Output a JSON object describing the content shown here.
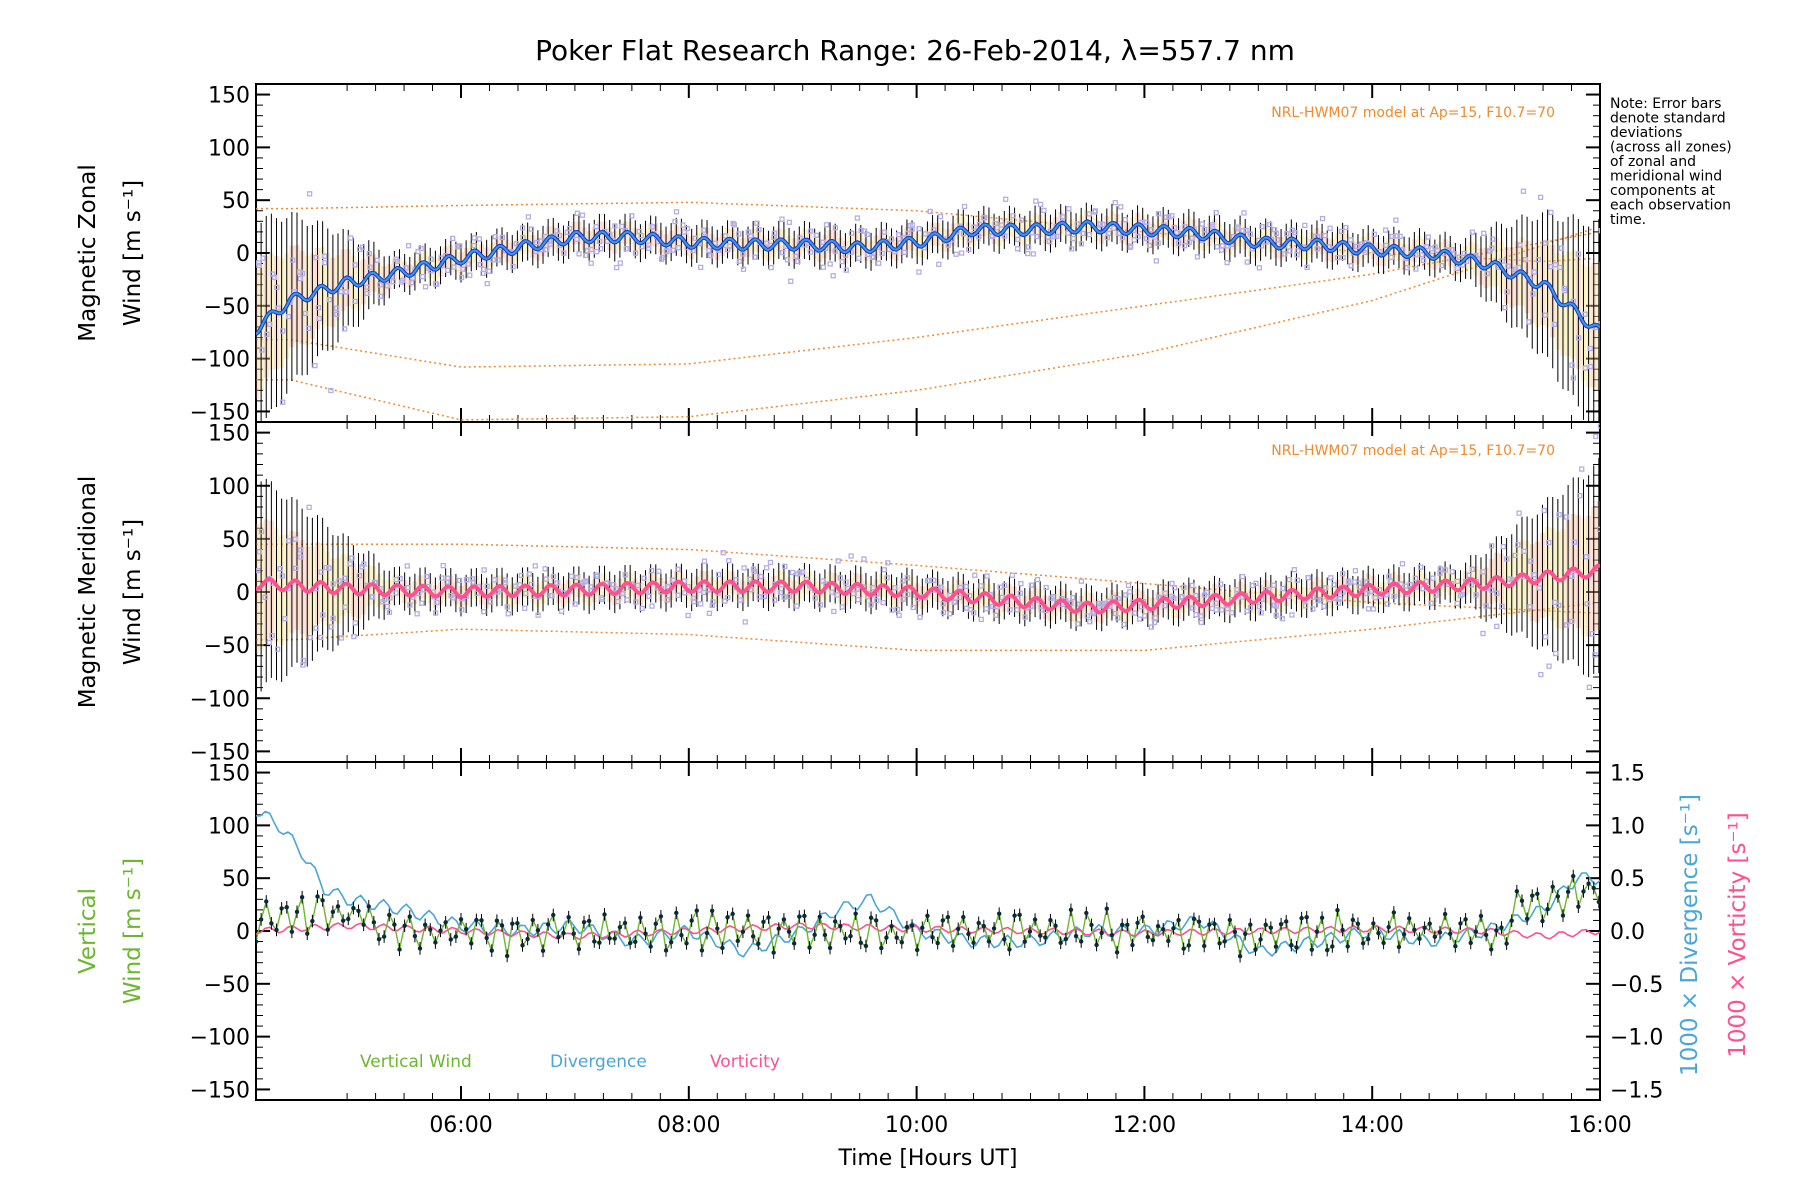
{
  "title": "Poker Flat Research Range: 26-Feb-2014, λ=557.7 nm",
  "note": [
    "Note: Error bars",
    "denote standard",
    "deviations",
    "(across all zones)",
    "of zonal and",
    "meridional wind",
    "components at",
    "each observation",
    "time."
  ],
  "colors": {
    "zonal_mean": "#3a9ad9",
    "zonal_mean_dark": "#1a35d6",
    "meridional_mean": "#ff5090",
    "zone_points": "#b4aee6",
    "model": "#f28a2e",
    "vertical": "#6bb82e",
    "divergence": "#4aa6d8",
    "vorticity": "#ff4f8f",
    "error_bars": "#000000"
  },
  "chart_data": [
    {
      "type": "line",
      "panel": "zonal",
      "ylabel": [
        "Magnetic Zonal",
        "Wind [m s⁻¹]"
      ],
      "ylim": [
        -160,
        160
      ],
      "yticks": [
        150,
        100,
        50,
        0,
        -50,
        -100,
        -150
      ],
      "model_label": "NRL-HWM07 model at Ap=15, F10.7=70",
      "mean_series": {
        "x": [
          4.2,
          4.5,
          4.8,
          5.0,
          5.5,
          6.0,
          6.5,
          7.0,
          7.5,
          8.0,
          8.5,
          9.0,
          9.5,
          10.0,
          10.5,
          11.0,
          11.5,
          12.0,
          12.5,
          13.0,
          13.5,
          14.0,
          14.5,
          15.0,
          15.5,
          16.0
        ],
        "y": [
          -72,
          -45,
          -35,
          -28,
          -18,
          -5,
          5,
          15,
          15,
          10,
          8,
          8,
          5,
          10,
          22,
          22,
          25,
          22,
          18,
          10,
          8,
          3,
          0,
          -10,
          -30,
          -75
        ]
      },
      "model_curves": [
        {
          "x": [
            4.5,
            6,
            8,
            10,
            12,
            14,
            15.5,
            16
          ],
          "y": [
            42,
            45,
            48,
            40,
            20,
            0,
            -8,
            -5
          ]
        },
        {
          "x": [
            4.5,
            6,
            8,
            10,
            12,
            14,
            16
          ],
          "y": [
            -82,
            -108,
            -105,
            -80,
            -50,
            -20,
            20
          ]
        },
        {
          "x": [
            4.5,
            6,
            8,
            10,
            12,
            14,
            16
          ],
          "y": [
            -120,
            -158,
            -155,
            -130,
            -95,
            -45,
            25
          ]
        }
      ]
    },
    {
      "type": "line",
      "panel": "meridional",
      "ylabel": [
        "Magnetic Meridional",
        "Wind [m s⁻¹]"
      ],
      "ylim": [
        -160,
        160
      ],
      "yticks": [
        150,
        100,
        50,
        0,
        -50,
        -100,
        -150
      ],
      "model_label": "NRL-HWM07 model at Ap=15, F10.7=70",
      "mean_series": {
        "x": [
          4.2,
          5.0,
          6.0,
          7.0,
          8.0,
          9.0,
          10.0,
          11.0,
          11.5,
          12.0,
          13.0,
          14.0,
          15.0,
          16.0
        ],
        "y": [
          8,
          3,
          0,
          2,
          5,
          5,
          0,
          -10,
          -15,
          -12,
          -5,
          2,
          8,
          20
        ]
      },
      "model_curves": [
        {
          "x": [
            4.5,
            6,
            8,
            10,
            12,
            14,
            16
          ],
          "y": [
            45,
            45,
            40,
            25,
            8,
            -10,
            -20
          ]
        },
        {
          "x": [
            4.5,
            6,
            8,
            10,
            12,
            14,
            16
          ],
          "y": [
            -45,
            -35,
            -40,
            -55,
            -55,
            -35,
            -10
          ]
        }
      ]
    },
    {
      "type": "line",
      "panel": "vertical",
      "ylabel": [
        "Vertical",
        "Wind [m s⁻¹]"
      ],
      "ylim": [
        -160,
        160
      ],
      "yticks": [
        150,
        100,
        50,
        0,
        -50,
        -100,
        -150
      ],
      "y2label": [
        "1000 × Divergence [s⁻¹]",
        "1000 × Vorticity [s⁻¹]"
      ],
      "y2lim": [
        -1.6,
        1.6
      ],
      "y2ticks": [
        1.5,
        1.0,
        0.5,
        0.0,
        -0.5,
        -1.0,
        -1.5
      ],
      "x_ticks": [
        "06:00",
        "08:00",
        "10:00",
        "12:00",
        "14:00",
        "16:00"
      ],
      "x_tick_values": [
        6,
        8,
        10,
        12,
        14,
        16
      ],
      "xlim": [
        4.2,
        16.0
      ],
      "xlabel": "Time [Hours UT]",
      "legend": [
        "Vertical Wind",
        "Divergence",
        "Vorticity"
      ],
      "divergence": {
        "x": [
          4.2,
          4.4,
          4.6,
          4.8,
          5.0,
          5.5,
          6.0,
          6.5,
          7.0,
          7.5,
          8.0,
          8.5,
          9.0,
          9.3,
          9.6,
          10.0,
          10.5,
          11.0,
          11.5,
          12.0,
          12.5,
          13.0,
          13.5,
          14.0,
          14.5,
          15.0,
          15.5,
          15.8,
          16.0
        ],
        "y": [
          1.15,
          1.0,
          0.75,
          0.4,
          0.3,
          0.2,
          0.05,
          0.0,
          0.05,
          -0.1,
          0.0,
          -0.2,
          0.0,
          0.2,
          0.3,
          0.0,
          -0.1,
          -0.1,
          0.0,
          0.0,
          0.1,
          -0.2,
          -0.1,
          0.0,
          -0.1,
          0.0,
          0.2,
          0.5,
          0.5
        ]
      },
      "vorticity": {
        "x": [
          4.2,
          5.0,
          6.0,
          7.0,
          8.0,
          9.0,
          10.0,
          11.0,
          12.0,
          13.0,
          14.0,
          15.0,
          15.5,
          16.0
        ],
        "y": [
          0.0,
          0.05,
          0.0,
          -0.05,
          0.0,
          0.05,
          0.02,
          0.0,
          -0.02,
          0.0,
          0.02,
          0.0,
          -0.05,
          0.0
        ]
      }
    }
  ]
}
